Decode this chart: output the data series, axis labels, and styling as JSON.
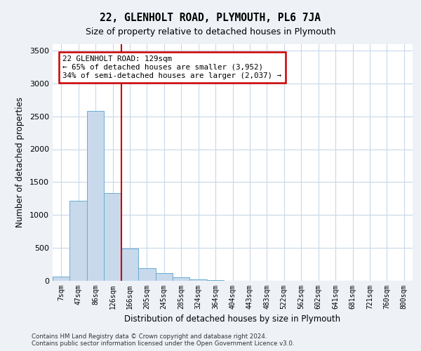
{
  "title": "22, GLENHOLT ROAD, PLYMOUTH, PL6 7JA",
  "subtitle": "Size of property relative to detached houses in Plymouth",
  "xlabel": "Distribution of detached houses by size in Plymouth",
  "ylabel": "Number of detached properties",
  "bar_color": "#c8d9ec",
  "bar_edge_color": "#6aacd4",
  "vline_color": "#cc0000",
  "vline_x": 3.5,
  "annotation_text": "22 GLENHOLT ROAD: 129sqm\n← 65% of detached houses are smaller (3,952)\n34% of semi-detached houses are larger (2,037) →",
  "annotation_box_color": "#cc0000",
  "categories": [
    "7sqm",
    "47sqm",
    "86sqm",
    "126sqm",
    "166sqm",
    "205sqm",
    "245sqm",
    "285sqm",
    "324sqm",
    "364sqm",
    "404sqm",
    "443sqm",
    "483sqm",
    "522sqm",
    "562sqm",
    "602sqm",
    "641sqm",
    "681sqm",
    "721sqm",
    "760sqm",
    "800sqm"
  ],
  "values": [
    60,
    1220,
    2580,
    1330,
    490,
    195,
    115,
    50,
    20,
    10,
    5,
    3,
    2,
    1,
    0,
    0,
    0,
    0,
    0,
    0,
    0
  ],
  "ylim": [
    0,
    3600
  ],
  "yticks": [
    0,
    500,
    1000,
    1500,
    2000,
    2500,
    3000,
    3500
  ],
  "footer_line1": "Contains HM Land Registry data © Crown copyright and database right 2024.",
  "footer_line2": "Contains public sector information licensed under the Open Government Licence v3.0.",
  "background_color": "#eef2f7",
  "plot_bg_color": "#ffffff",
  "grid_color": "#c8d8e8"
}
